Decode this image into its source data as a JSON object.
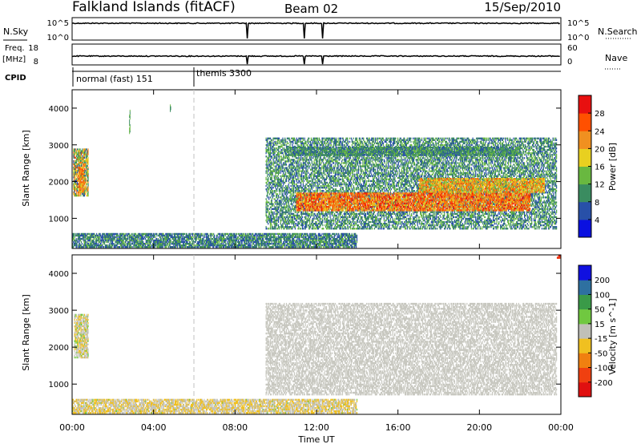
{
  "header": {
    "station": "Falkland Islands (fitACF)",
    "beam": "Beam 02",
    "date": "15/Sep/2010"
  },
  "params": {
    "nsky_label": "N.Sky",
    "nsearch_label": "N.Search",
    "freq_label": "Freq.",
    "freq_unit": "[MHz]",
    "nave_label": "Nave",
    "cpid_label": "CPID",
    "nsky_ticks": [
      "10^5",
      "10^0"
    ],
    "nsearch_ticks": [
      "10^5",
      "10^0"
    ],
    "freq_ticks": [
      "18",
      "8"
    ],
    "nave_ticks": [
      "60",
      "0"
    ]
  },
  "cpid": [
    {
      "label": "normal (fast) 151",
      "start_hour": 0
    },
    {
      "label": "themis 3300",
      "start_hour": 6
    }
  ],
  "colors": {
    "ground": "#c8c8c0",
    "power": [
      "#0a10e0",
      "#2850a8",
      "#3a8c60",
      "#69b840",
      "#e8d020",
      "#f09020",
      "#ff5000",
      "#e81010"
    ],
    "velocity": [
      "#1010e0",
      "#2e70a0",
      "#3a9a48",
      "#70c840",
      "#c0c0b8",
      "#f0c020",
      "#f08010",
      "#f04010",
      "#e01010"
    ]
  },
  "chart_data": {
    "type": "heatmap",
    "x": {
      "label": "Time UT",
      "range_hours": [
        0,
        24
      ],
      "tick_labels": [
        "00:00",
        "04:00",
        "08:00",
        "12:00",
        "16:00",
        "20:00",
        "00:00"
      ]
    },
    "y": {
      "label": "Slant Range [km]",
      "range_km": [
        180,
        4500
      ],
      "tick_labels": [
        "1000",
        "2000",
        "3000",
        "4000"
      ],
      "tick_values": [
        1000,
        2000,
        3000,
        4000
      ]
    },
    "panels": [
      {
        "name": "power",
        "colorbar": {
          "label": "Power [dB]",
          "ticks": [
            "4",
            "8",
            "12",
            "16",
            "20",
            "24",
            "28"
          ],
          "range": [
            0,
            32
          ]
        },
        "regions": [
          {
            "t": [
              0.05,
              0.8
            ],
            "r": [
              1600,
              2900
            ],
            "v": [
              6,
              26
            ]
          },
          {
            "t": [
              0.3,
              0.6
            ],
            "r": [
              1700,
              2400
            ],
            "v": [
              16,
              28
            ]
          },
          {
            "t": [
              2.8,
              2.85
            ],
            "r": [
              3300,
              4000
            ],
            "v": [
              8,
              16
            ]
          },
          {
            "t": [
              4.8,
              4.85
            ],
            "r": [
              3900,
              4100
            ],
            "v": [
              8,
              14
            ]
          },
          {
            "t": [
              9.5,
              23.8
            ],
            "r": [
              700,
              3200
            ],
            "v": [
              4,
              16
            ]
          },
          {
            "t": [
              11.0,
              22.5
            ],
            "r": [
              1200,
              1700
            ],
            "v": [
              18,
              30
            ]
          },
          {
            "t": [
              17.0,
              23.2
            ],
            "r": [
              1700,
              2100
            ],
            "v": [
              14,
              26
            ]
          },
          {
            "t": [
              10.5,
              22.0
            ],
            "r": [
              2700,
              2950
            ],
            "v": [
              6,
              14
            ]
          },
          {
            "t": [
              0,
              14
            ],
            "r": [
              200,
              600
            ],
            "v": [
              4,
              14
            ]
          }
        ]
      },
      {
        "name": "velocity",
        "colorbar": {
          "label": "Velocity [m s^-1]",
          "ticks": [
            "200",
            "100",
            "50",
            "15",
            "-15",
            "-50",
            "-100",
            "-200"
          ],
          "range": [
            -250,
            250
          ]
        },
        "regions": [
          {
            "t": [
              0.1,
              0.8
            ],
            "r": [
              1700,
              2900
            ],
            "v": [
              -60,
              40
            ]
          },
          {
            "t": [
              9.5,
              23.8
            ],
            "r": [
              700,
              3200
            ],
            "v": [
              -10,
              10
            ]
          },
          {
            "t": [
              0,
              14
            ],
            "r": [
              200,
              600
            ],
            "v": [
              -70,
              30
            ]
          },
          {
            "t": [
              23.8,
              24.0
            ],
            "r": [
              4400,
              4500
            ],
            "v": [
              -200,
              -150
            ]
          }
        ]
      }
    ],
    "markers": {
      "cpid_change_hour": 6
    },
    "gaps_hours": [
      8.6,
      11.4,
      12.3
    ]
  }
}
